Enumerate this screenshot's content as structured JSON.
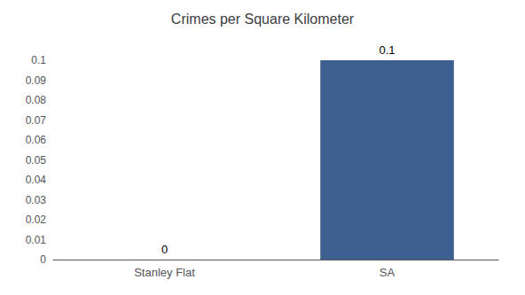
{
  "chart_data": {
    "type": "bar",
    "title": "Crimes per Square Kilometer",
    "categories": [
      "Stanley Flat",
      "SA"
    ],
    "values": [
      0,
      0.1
    ],
    "color": "#3d6090",
    "ylim": [
      0,
      0.1
    ],
    "yticks": [
      0,
      0.01,
      0.02,
      0.03,
      0.04,
      0.05,
      0.06,
      0.07,
      0.08,
      0.09,
      0.1
    ],
    "grid": false,
    "data_labels": true
  }
}
